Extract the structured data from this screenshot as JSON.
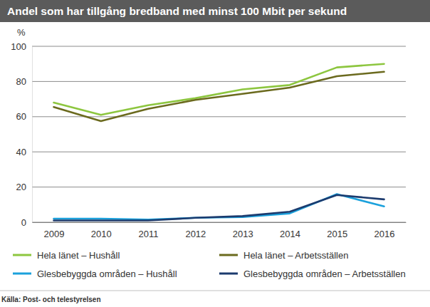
{
  "chart_data": {
    "type": "line",
    "title": "Andel som har tillgång bredband med minst 100 Mbit per sekund",
    "y_label": "%",
    "source": "Källa: Post- och telestyrelsen",
    "categories": [
      "2009",
      "2010",
      "2011",
      "2012",
      "2013",
      "2014",
      "2015",
      "2016"
    ],
    "series": [
      {
        "name": "Hela länet – Hushåll",
        "color": "#8dc63f",
        "values": [
          68,
          61,
          66.5,
          70.5,
          75.5,
          78,
          88,
          90
        ]
      },
      {
        "name": "Hela länet – Arbetsställen",
        "color": "#6b6a1e",
        "values": [
          65.5,
          57.5,
          64.5,
          69.5,
          73,
          76.5,
          83,
          85.5
        ]
      },
      {
        "name": "Glesbebyggda områden – Hushåll",
        "color": "#1ba1dc",
        "values": [
          2,
          2,
          1.5,
          2.5,
          3,
          5,
          16,
          9
        ]
      },
      {
        "name": "Glesbebyggda områden – Arbetsställen",
        "color": "#1c3b6e",
        "values": [
          1,
          1,
          1,
          2.5,
          3.5,
          6,
          15.5,
          13
        ]
      }
    ],
    "ylim": [
      0,
      100
    ],
    "yticks": [
      0,
      20,
      40,
      60,
      80,
      100
    ],
    "grid": true,
    "legend": "bottom"
  }
}
